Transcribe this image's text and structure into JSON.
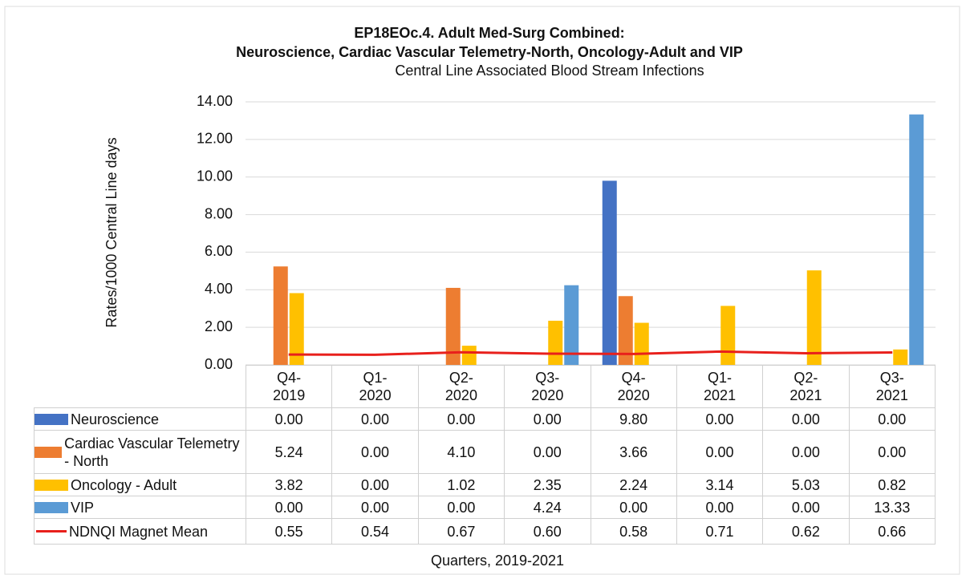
{
  "chart_data": {
    "type": "bar",
    "title": [
      "EP18EOc.4. Adult Med-Surg Combined:",
      "Neuroscience, Cardiac Vascular Telemetry-North, Oncology-Adult and VIP"
    ],
    "subtitle": "Central Line Associated Blood Stream Infections",
    "y_label": "Rates/1000 Central Line days",
    "x_label": "Quarters, 2019-2021",
    "categories": [
      "Q4-2019",
      "Q1-2020",
      "Q2-2020",
      "Q3-2020",
      "Q4-2020",
      "Q1-2021",
      "Q2-2021",
      "Q3-2021"
    ],
    "series": [
      {
        "name": "Neuroscience",
        "type": "bar",
        "color": "#4472c4",
        "values": [
          0,
          0,
          0,
          0,
          9.8,
          0,
          0,
          0
        ],
        "value_labels": [
          "0.00",
          "0.00",
          "0.00",
          "0.00",
          "9.80",
          "0.00",
          "0.00",
          "0.00"
        ]
      },
      {
        "name": "Cardiac Vascular Telemetry - North",
        "type": "bar",
        "color": "#ed7d31",
        "values": [
          5.24,
          0,
          4.1,
          0,
          3.66,
          0,
          0,
          0
        ],
        "value_labels": [
          "5.24",
          "0.00",
          "4.10",
          "0.00",
          "3.66",
          "0.00",
          "0.00",
          "0.00"
        ]
      },
      {
        "name": "Oncology - Adult",
        "type": "bar",
        "color": "#ffc000",
        "values": [
          3.82,
          0,
          1.02,
          2.35,
          2.24,
          3.14,
          5.03,
          0.82
        ],
        "value_labels": [
          "3.82",
          "0.00",
          "1.02",
          "2.35",
          "2.24",
          "3.14",
          "5.03",
          "0.82"
        ]
      },
      {
        "name": "VIP",
        "type": "bar",
        "color": "#5b9bd5",
        "values": [
          0,
          0,
          0,
          4.24,
          0,
          0,
          0,
          13.33
        ],
        "value_labels": [
          "0.00",
          "0.00",
          "0.00",
          "4.24",
          "0.00",
          "0.00",
          "0.00",
          "13.33"
        ]
      },
      {
        "name": "NDNQI Magnet Mean",
        "type": "line",
        "color": "#e8201c",
        "values": [
          0.55,
          0.54,
          0.67,
          0.6,
          0.58,
          0.71,
          0.62,
          0.66
        ],
        "value_labels": [
          "0.55",
          "0.54",
          "0.67",
          "0.60",
          "0.58",
          "0.71",
          "0.62",
          "0.66"
        ]
      }
    ],
    "ylim": [
      0,
      14
    ],
    "yticks": [
      {
        "value": 0,
        "label": "0.00"
      },
      {
        "value": 2,
        "label": "2.00"
      },
      {
        "value": 4,
        "label": "4.00"
      },
      {
        "value": 6,
        "label": "6.00"
      },
      {
        "value": 8,
        "label": "8.00"
      },
      {
        "value": 10,
        "label": "10.00"
      },
      {
        "value": 12,
        "label": "12.00"
      },
      {
        "value": 14,
        "label": "14.00"
      }
    ],
    "grid": true
  }
}
